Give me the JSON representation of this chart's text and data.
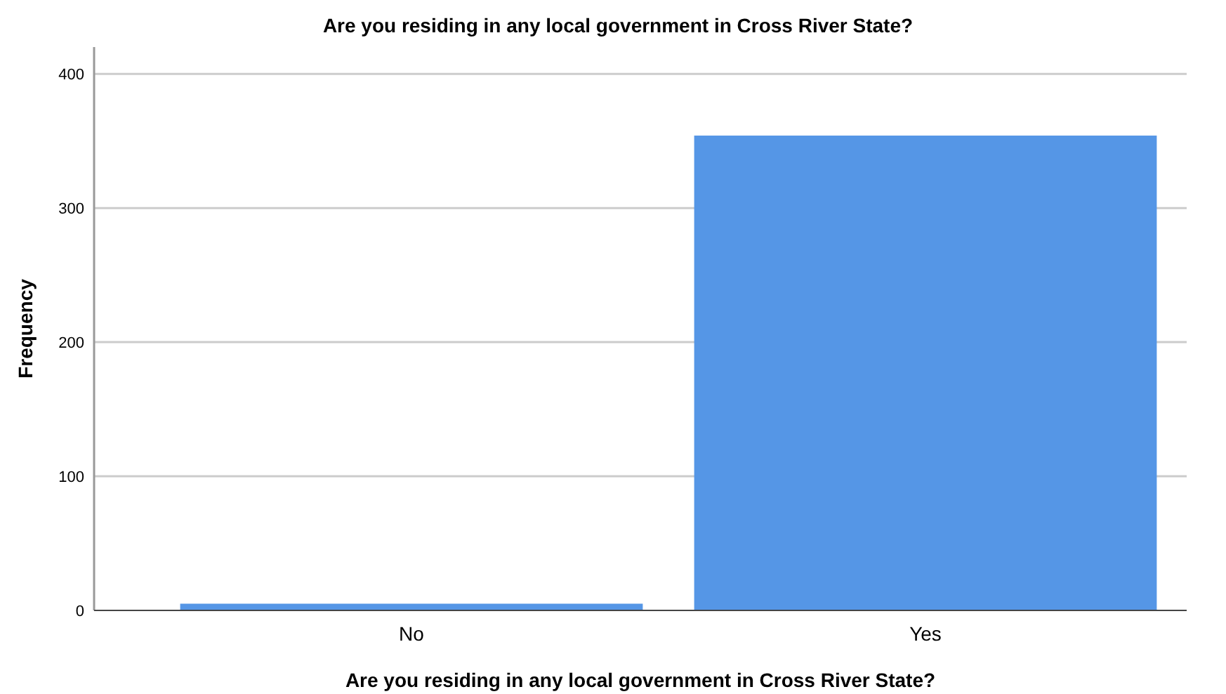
{
  "chart_data": {
    "type": "bar",
    "title": "Are you residing in any local government in Cross River State?",
    "xlabel": "Are you residing in any local government in Cross River State?",
    "ylabel": "Frequency",
    "categories": [
      "No",
      "Yes"
    ],
    "values": [
      5,
      354
    ],
    "color": "#5596e6",
    "ylim": [
      0,
      420
    ],
    "yticks": [
      0,
      100,
      200,
      300,
      400
    ],
    "grid": "y"
  }
}
